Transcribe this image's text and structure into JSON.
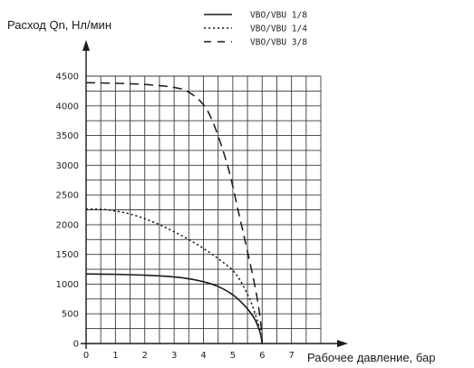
{
  "chart_data": {
    "type": "line",
    "ylabel": "Расход Qn, Нл/мин",
    "xlabel": "Рабочее давление, бар",
    "xlim": [
      0,
      8
    ],
    "ylim": [
      0,
      4500
    ],
    "x_ticks": [
      "0",
      "1",
      "2",
      "3",
      "4",
      "5",
      "6",
      "7"
    ],
    "y_ticks": [
      "0",
      "500",
      "1000",
      "1500",
      "2000",
      "2500",
      "3000",
      "3500",
      "4000",
      "4500"
    ],
    "grid": true,
    "legend_position": "top-right",
    "series": [
      {
        "name": "VBO/VBU 1/8",
        "style": "solid",
        "x": [
          0,
          1,
          2,
          3,
          3.5,
          4,
          4.5,
          5,
          5.4,
          5.7,
          5.85,
          5.95,
          6.0
        ],
        "y": [
          1170,
          1165,
          1150,
          1120,
          1090,
          1040,
          960,
          820,
          640,
          450,
          300,
          150,
          0
        ]
      },
      {
        "name": "VBO/VBU 1/4",
        "style": "dotted",
        "x": [
          0,
          0.5,
          1,
          1.5,
          2,
          2.5,
          3,
          3.5,
          4,
          4.5,
          5,
          5.3,
          5.6,
          5.8,
          5.95,
          6.0
        ],
        "y": [
          2260,
          2260,
          2230,
          2180,
          2100,
          2000,
          1880,
          1750,
          1600,
          1430,
          1230,
          1020,
          720,
          440,
          180,
          0
        ]
      },
      {
        "name": "VBO/VBU 3/8",
        "style": "dashed",
        "x": [
          0,
          1,
          2,
          3,
          3.5,
          4,
          4.3,
          4.6,
          4.9,
          5.2,
          5.5,
          5.8,
          5.95,
          6.0
        ],
        "y": [
          4390,
          4380,
          4360,
          4310,
          4230,
          4020,
          3750,
          3350,
          2850,
          2200,
          1550,
          850,
          350,
          0
        ]
      }
    ]
  },
  "colors": {
    "grid": "#3a3a3a",
    "line": "#1a1a1a"
  }
}
